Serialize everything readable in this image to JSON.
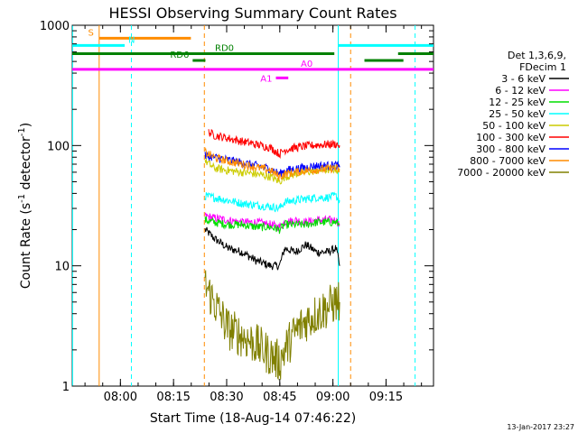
{
  "chart_data": {
    "type": "line",
    "title": "HESSI Observing Summary Count Rates",
    "xlabel": "Start Time (18-Aug-14 07:46:22)",
    "ylabel_main": "Count Rate (s",
    "ylabel_sup1": "-1",
    "ylabel_mid": " detector",
    "ylabel_sup2": "-1",
    "ylabel_end": ")",
    "yscale": "log",
    "ylim": [
      1,
      1000
    ],
    "xlim_minutes": [
      0,
      102
    ],
    "x_ticks": [
      {
        "label": "08:00",
        "m": 13.6
      },
      {
        "label": "08:15",
        "m": 28.6
      },
      {
        "label": "08:30",
        "m": 43.6
      },
      {
        "label": "08:45",
        "m": 58.6
      },
      {
        "label": "09:00",
        "m": 73.6
      },
      {
        "label": "09:15",
        "m": 88.6
      }
    ],
    "y_ticks": [
      {
        "label": "1",
        "v": 1
      },
      {
        "label": "10",
        "v": 10
      },
      {
        "label": "100",
        "v": 100
      },
      {
        "label": "1000",
        "v": 1000
      }
    ],
    "legend_header": [
      "Det 1,3,6,9,",
      "FDecim 1"
    ],
    "series": [
      {
        "name": "3 - 6 keV",
        "color": "#000000",
        "points": [
          [
            37.5,
            20
          ],
          [
            40,
            17
          ],
          [
            44,
            14
          ],
          [
            48,
            13
          ],
          [
            52,
            11
          ],
          [
            56,
            10
          ],
          [
            58.5,
            10
          ],
          [
            60,
            14
          ],
          [
            63,
            13
          ],
          [
            66,
            15
          ],
          [
            69,
            13
          ],
          [
            72,
            13
          ],
          [
            74.5,
            14
          ],
          [
            75.5,
            10
          ]
        ]
      },
      {
        "name": "6 - 12 keV",
        "color": "#ff00ff",
        "points": [
          [
            37.5,
            26
          ],
          [
            40,
            25
          ],
          [
            44,
            24
          ],
          [
            48,
            23
          ],
          [
            52,
            23
          ],
          [
            56,
            22
          ],
          [
            58.5,
            21
          ],
          [
            60,
            23
          ],
          [
            63,
            24
          ],
          [
            66,
            23
          ],
          [
            69,
            24
          ],
          [
            72,
            24
          ],
          [
            74.5,
            24
          ],
          [
            75.5,
            22
          ]
        ]
      },
      {
        "name": "12 - 25 keV",
        "color": "#00dd00",
        "points": [
          [
            37.5,
            24
          ],
          [
            40,
            23
          ],
          [
            44,
            22
          ],
          [
            48,
            22
          ],
          [
            52,
            21
          ],
          [
            56,
            21
          ],
          [
            58.5,
            20
          ],
          [
            60,
            22
          ],
          [
            63,
            22
          ],
          [
            66,
            22
          ],
          [
            69,
            23
          ],
          [
            72,
            23
          ],
          [
            74.5,
            23
          ],
          [
            75.5,
            22
          ]
        ]
      },
      {
        "name": "25 - 50 keV",
        "color": "#00ffff",
        "points": [
          [
            37.5,
            38
          ],
          [
            40,
            37
          ],
          [
            44,
            35
          ],
          [
            48,
            33
          ],
          [
            52,
            32
          ],
          [
            56,
            31
          ],
          [
            58.5,
            30
          ],
          [
            60,
            34
          ],
          [
            63,
            35
          ],
          [
            66,
            36
          ],
          [
            69,
            37
          ],
          [
            72,
            37
          ],
          [
            74.5,
            38
          ],
          [
            75.5,
            35
          ]
        ]
      },
      {
        "name": "50 - 100 keV",
        "color": "#cccc00",
        "points": [
          [
            37.5,
            75
          ],
          [
            40,
            65
          ],
          [
            44,
            62
          ],
          [
            48,
            60
          ],
          [
            52,
            58
          ],
          [
            56,
            55
          ],
          [
            58.5,
            50
          ],
          [
            60,
            55
          ],
          [
            63,
            58
          ],
          [
            66,
            60
          ],
          [
            69,
            62
          ],
          [
            72,
            63
          ],
          [
            74.5,
            64
          ],
          [
            75.5,
            60
          ]
        ]
      },
      {
        "name": "100 - 300 keV",
        "color": "#ff0000",
        "points": [
          [
            38.5,
            130
          ],
          [
            40,
            122
          ],
          [
            44,
            115
          ],
          [
            48,
            108
          ],
          [
            52,
            102
          ],
          [
            56,
            96
          ],
          [
            58.5,
            85
          ],
          [
            60,
            92
          ],
          [
            63,
            96
          ],
          [
            66,
            99
          ],
          [
            69,
            101
          ],
          [
            72,
            102
          ],
          [
            74.5,
            103
          ],
          [
            75.5,
            100
          ]
        ]
      },
      {
        "name": "300 - 800 keV",
        "color": "#0000ff",
        "points": [
          [
            37.5,
            82
          ],
          [
            40,
            80
          ],
          [
            44,
            76
          ],
          [
            48,
            72
          ],
          [
            52,
            68
          ],
          [
            56,
            64
          ],
          [
            58.5,
            58
          ],
          [
            60,
            62
          ],
          [
            63,
            64
          ],
          [
            66,
            66
          ],
          [
            69,
            68
          ],
          [
            72,
            68
          ],
          [
            74.5,
            69
          ],
          [
            75.5,
            66
          ]
        ]
      },
      {
        "name": "800 - 7000 keV",
        "color": "#ff8c00",
        "points": [
          [
            37.5,
            88
          ],
          [
            40,
            80
          ],
          [
            44,
            74
          ],
          [
            48,
            70
          ],
          [
            52,
            66
          ],
          [
            56,
            62
          ],
          [
            58.5,
            55
          ],
          [
            60,
            58
          ],
          [
            63,
            60
          ],
          [
            66,
            62
          ],
          [
            69,
            63
          ],
          [
            72,
            64
          ],
          [
            74.5,
            65
          ],
          [
            75.5,
            62
          ]
        ]
      },
      {
        "name": "7000 - 20000 keV",
        "color": "#808000",
        "points": [
          [
            37.5,
            7
          ],
          [
            40,
            5
          ],
          [
            44,
            3
          ],
          [
            48,
            2.6
          ],
          [
            52,
            2.2
          ],
          [
            56,
            1.8
          ],
          [
            58.5,
            1.6
          ],
          [
            60,
            2
          ],
          [
            63,
            2.8
          ],
          [
            66,
            3.5
          ],
          [
            69,
            4
          ],
          [
            72,
            4.5
          ],
          [
            74.5,
            5
          ],
          [
            75.5,
            5
          ]
        ]
      }
    ],
    "attenuator_bars": [
      {
        "label": "S",
        "color": "#ff8c00",
        "x0": 7.6,
        "x1": 33.5,
        "v": 780
      },
      {
        "label": "N",
        "color": "#00ffff",
        "x0": 0,
        "x1": 14.8,
        "v": 680
      },
      {
        "label": "N",
        "color": "#00ffff",
        "x0": 75,
        "x1": 102,
        "v": 680,
        "show_label": false
      },
      {
        "label": "RD0",
        "color": "#008000",
        "x0": 0,
        "x1": 74,
        "v": 580
      },
      {
        "label": "RD0",
        "color": "#008000",
        "x0": 92,
        "x1": 102,
        "v": 580,
        "show_label": false
      },
      {
        "label": "RD6",
        "color": "#008000",
        "x0": 34,
        "x1": 37.6,
        "v": 510
      },
      {
        "label": "RD6",
        "color": "#008000",
        "x0": 82.5,
        "x1": 93.5,
        "v": 510,
        "show_label": false
      },
      {
        "label": "A0",
        "color": "#ff00ff",
        "x0": 0,
        "x1": 102,
        "v": 430
      },
      {
        "label": "A1",
        "color": "#ff00ff",
        "x0": 57.5,
        "x1": 61,
        "v": 365
      }
    ],
    "vlines": [
      {
        "m": 0.1,
        "color": "#00ffff",
        "dash": false
      },
      {
        "m": 7.6,
        "color": "#ff8c00",
        "dash": false
      },
      {
        "m": 16.7,
        "color": "#00ffff",
        "dash": true
      },
      {
        "m": 37.3,
        "color": "#ff8c00",
        "dash": true
      },
      {
        "m": 75.1,
        "color": "#00ffff",
        "dash": false
      },
      {
        "m": 78.6,
        "color": "#ff8c00",
        "dash": true
      },
      {
        "m": 96.8,
        "color": "#00ffff",
        "dash": true
      }
    ],
    "footer_date": "13-Jan-2017 23:27"
  }
}
